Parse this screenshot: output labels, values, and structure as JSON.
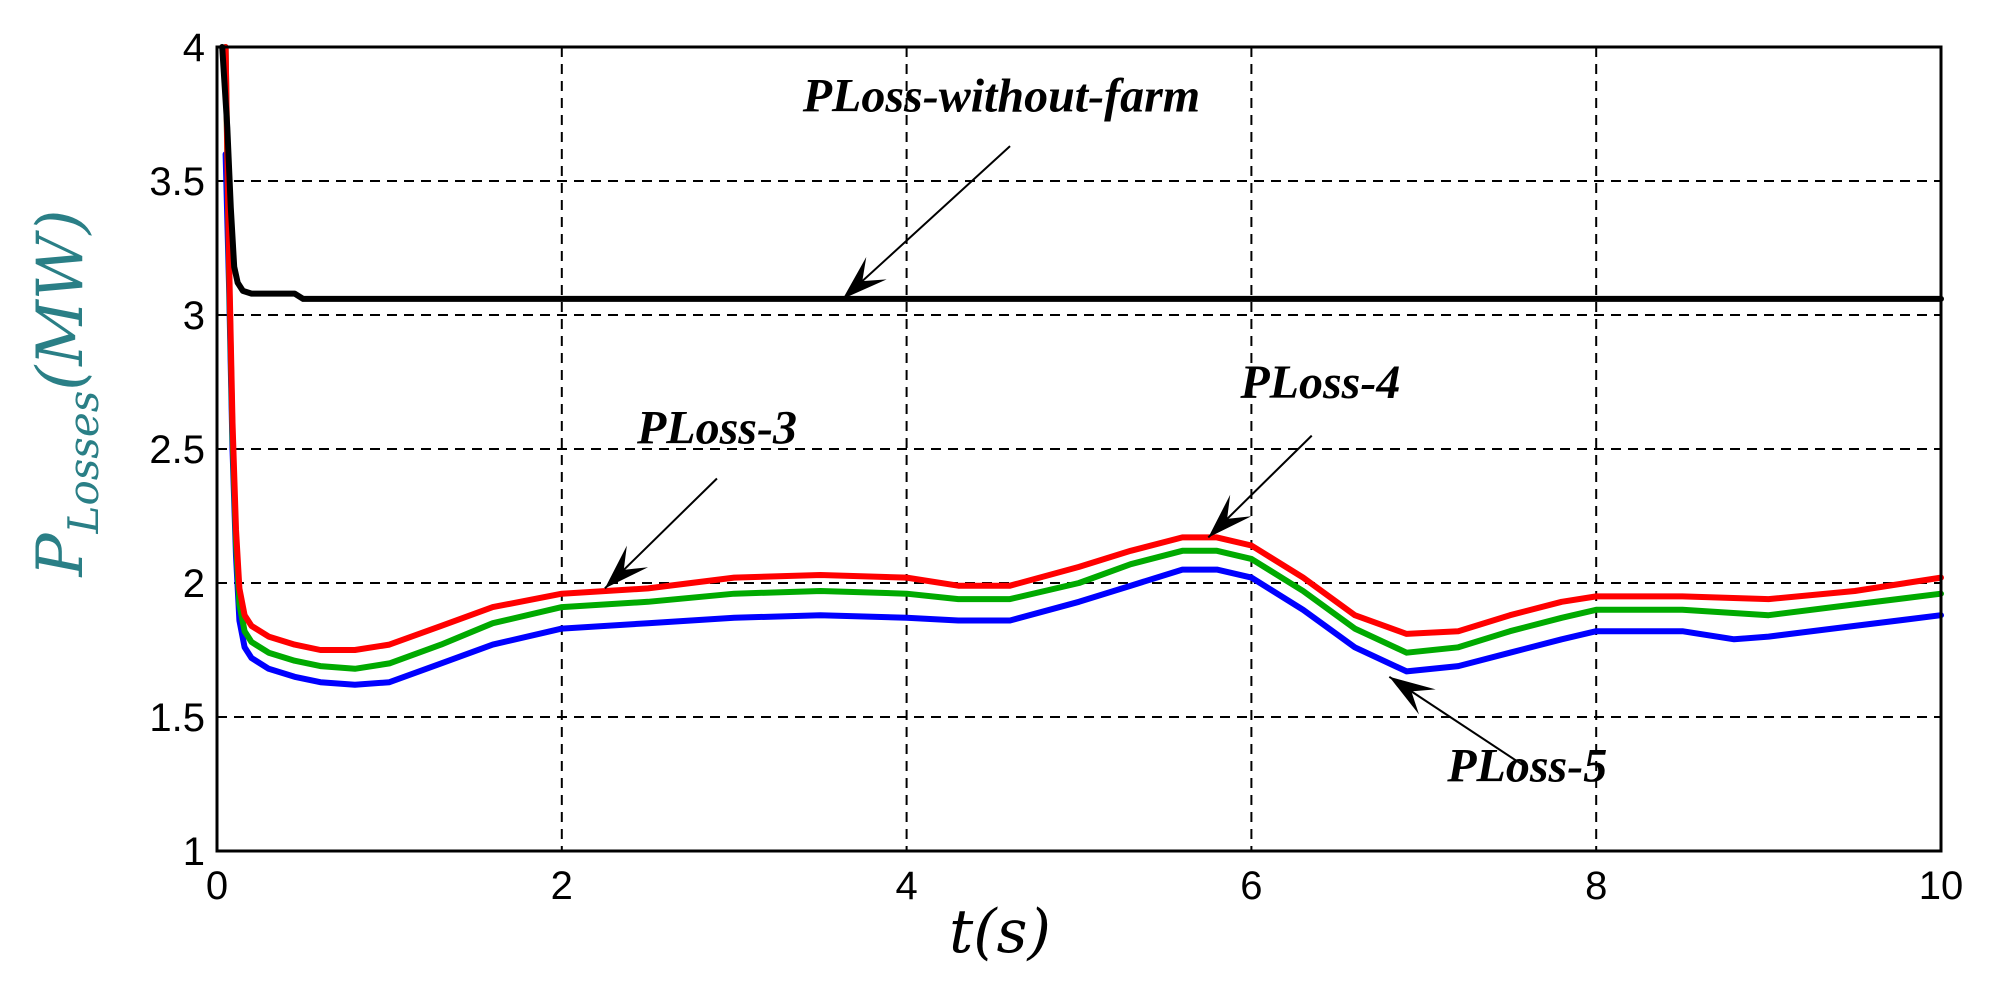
{
  "chart_data": {
    "type": "line",
    "title": "",
    "xlabel": "t(s)",
    "ylabel": {
      "main": "P",
      "subscript": "Losses",
      "unit": "(MW)"
    },
    "xlim": [
      0,
      10
    ],
    "ylim": [
      1,
      4
    ],
    "x_ticks": [
      "0",
      "2",
      "4",
      "6",
      "8",
      "10"
    ],
    "y_ticks": [
      "1",
      "1.5",
      "2",
      "2.5",
      "3",
      "3.5",
      "4"
    ],
    "grid": true,
    "series": [
      {
        "name": "PLoss-without-farm",
        "color": "#000000",
        "x": [
          0.03,
          0.06,
          0.08,
          0.1,
          0.12,
          0.15,
          0.2,
          0.3,
          0.45,
          0.5,
          1,
          2,
          3,
          4,
          5,
          6,
          7,
          8,
          9,
          10
        ],
        "y": [
          4.0,
          3.7,
          3.4,
          3.18,
          3.12,
          3.09,
          3.08,
          3.08,
          3.08,
          3.06,
          3.06,
          3.06,
          3.06,
          3.06,
          3.06,
          3.06,
          3.06,
          3.06,
          3.06,
          3.06
        ]
      },
      {
        "name": "PLoss-3",
        "color": "#ff0000",
        "x": [
          0.05,
          0.07,
          0.09,
          0.11,
          0.13,
          0.16,
          0.2,
          0.3,
          0.45,
          0.6,
          0.8,
          1.0,
          1.3,
          1.6,
          2.0,
          2.5,
          3.0,
          3.5,
          4.0,
          4.3,
          4.6,
          5.0,
          5.3,
          5.6,
          5.8,
          6.0,
          6.3,
          6.6,
          6.9,
          7.2,
          7.5,
          7.8,
          8.0,
          8.5,
          9.0,
          9.5,
          10.0
        ],
        "y": [
          4.0,
          3.2,
          2.6,
          2.2,
          1.98,
          1.88,
          1.84,
          1.8,
          1.77,
          1.75,
          1.75,
          1.77,
          1.84,
          1.91,
          1.96,
          1.98,
          2.02,
          2.03,
          2.02,
          1.99,
          1.99,
          2.06,
          2.12,
          2.17,
          2.17,
          2.14,
          2.02,
          1.88,
          1.81,
          1.82,
          1.88,
          1.93,
          1.95,
          1.95,
          1.94,
          1.97,
          2.02
        ]
      },
      {
        "name": "",
        "color": "#00aa00",
        "x": [
          0.05,
          0.07,
          0.09,
          0.11,
          0.13,
          0.16,
          0.2,
          0.3,
          0.45,
          0.6,
          0.8,
          1.0,
          1.3,
          1.6,
          2.0,
          2.5,
          3.0,
          3.5,
          4.0,
          4.3,
          4.6,
          5.0,
          5.3,
          5.6,
          5.8,
          6.0,
          6.3,
          6.6,
          6.9,
          7.2,
          7.5,
          7.8,
          8.0,
          8.5,
          9.0,
          9.5,
          10.0
        ],
        "y": [
          4.0,
          3.15,
          2.55,
          2.15,
          1.92,
          1.82,
          1.78,
          1.74,
          1.71,
          1.69,
          1.68,
          1.7,
          1.77,
          1.85,
          1.91,
          1.93,
          1.96,
          1.97,
          1.96,
          1.94,
          1.94,
          2.0,
          2.07,
          2.12,
          2.12,
          2.09,
          1.97,
          1.83,
          1.74,
          1.76,
          1.82,
          1.87,
          1.9,
          1.9,
          1.88,
          1.92,
          1.96
        ]
      },
      {
        "name": "",
        "color": "#0000ff",
        "x": [
          0.05,
          0.07,
          0.09,
          0.11,
          0.13,
          0.16,
          0.2,
          0.3,
          0.45,
          0.6,
          0.8,
          1.0,
          1.3,
          1.6,
          2.0,
          2.5,
          3.0,
          3.5,
          4.0,
          4.3,
          4.6,
          5.0,
          5.3,
          5.6,
          5.8,
          6.0,
          6.3,
          6.6,
          6.9,
          7.2,
          7.5,
          7.8,
          8.0,
          8.5,
          8.8,
          9.0,
          9.5,
          10.0
        ],
        "y": [
          3.6,
          3.1,
          2.5,
          2.1,
          1.86,
          1.76,
          1.72,
          1.68,
          1.65,
          1.63,
          1.62,
          1.63,
          1.7,
          1.77,
          1.83,
          1.85,
          1.87,
          1.88,
          1.87,
          1.86,
          1.86,
          1.93,
          1.99,
          2.05,
          2.05,
          2.02,
          1.9,
          1.76,
          1.67,
          1.69,
          1.74,
          1.79,
          1.82,
          1.82,
          1.79,
          1.8,
          1.84,
          1.88
        ]
      }
    ],
    "annotations": [
      {
        "text": "PLoss-without-farm",
        "x": 4.55,
        "y": 3.76,
        "arrow_to": [
          3.63,
          3.06
        ],
        "arrow_from": [
          4.6,
          3.63
        ]
      },
      {
        "text": "PLoss-3",
        "x": 2.9,
        "y": 2.52,
        "arrow_to": [
          2.25,
          1.98
        ],
        "arrow_from": [
          2.9,
          2.39
        ]
      },
      {
        "text": "PLoss-4",
        "x": 6.4,
        "y": 2.69,
        "arrow_to": [
          5.75,
          2.17
        ],
        "arrow_from": [
          6.35,
          2.55
        ]
      },
      {
        "text": "PLoss-5",
        "x": 7.6,
        "y": 1.26,
        "arrow_to": [
          6.8,
          1.65
        ],
        "arrow_from": [
          7.6,
          1.31
        ]
      }
    ]
  }
}
